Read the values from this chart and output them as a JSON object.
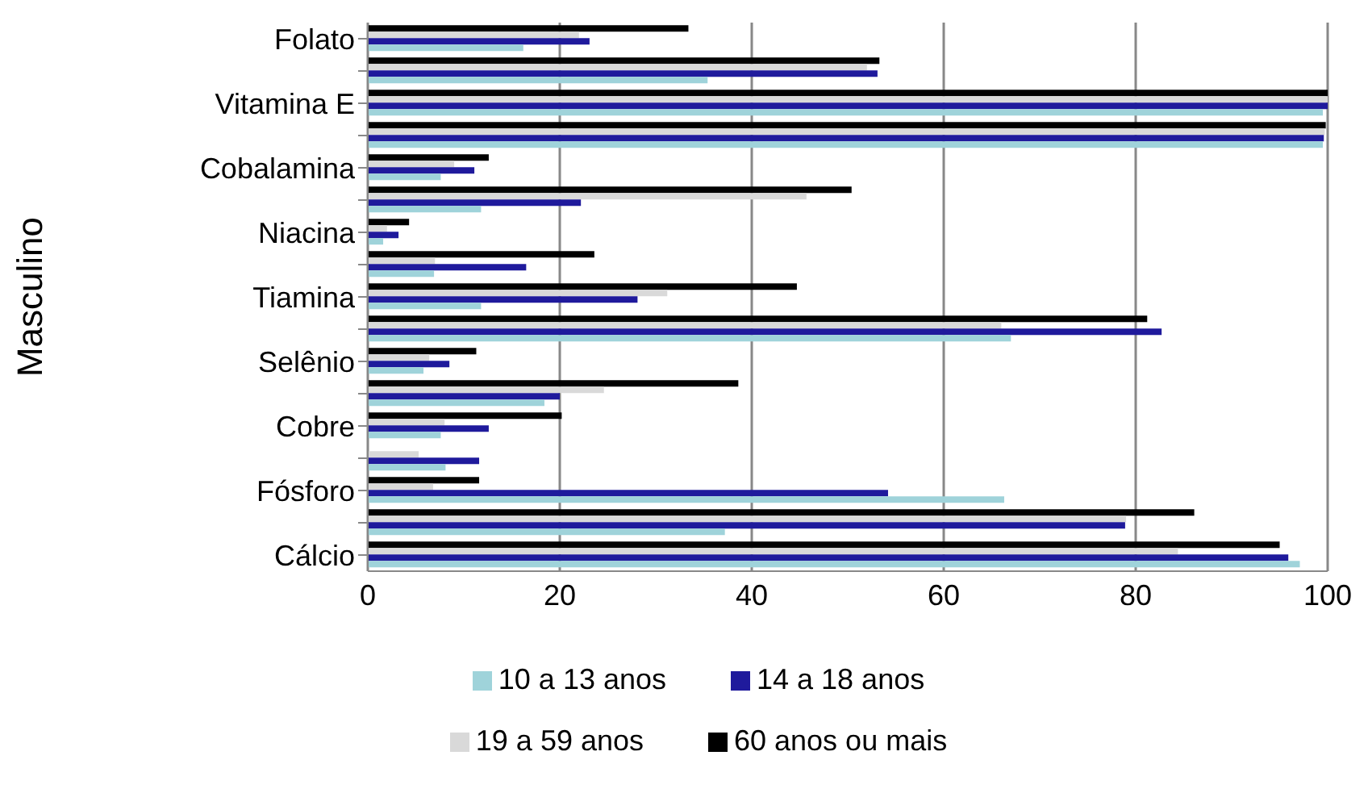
{
  "chart_data": {
    "type": "bar",
    "orientation": "horizontal",
    "ylabel": "Masculino",
    "categories": [
      "Folato",
      null,
      "Vitamina E",
      null,
      "Cobalamina",
      null,
      "Niacina",
      null,
      "Tiamina",
      null,
      "Selênio",
      null,
      "Cobre",
      null,
      "Fósforo",
      null,
      "Cálcio"
    ],
    "series": [
      {
        "name": "60 anos ou mais",
        "color": "#000000",
        "values": [
          33.4,
          53.3,
          100,
          99.8,
          12.6,
          50.4,
          4.3,
          23.6,
          44.7,
          81.2,
          11.3,
          38.6,
          20.2,
          0,
          11.6,
          86.1,
          95.0
        ]
      },
      {
        "name": "19 a 59 anos",
        "color": "#d9d9d9",
        "values": [
          22,
          52,
          100,
          99.7,
          9,
          45.7,
          2,
          7,
          31.2,
          66,
          6.4,
          24.6,
          8,
          5.3,
          6.8,
          79,
          84.4
        ]
      },
      {
        "name": "14 a 18 anos",
        "color": "#1f1a9c",
        "values": [
          23.1,
          53.1,
          100,
          99.6,
          11.1,
          22.2,
          3.2,
          16.5,
          28.1,
          82.7,
          8.5,
          20.0,
          12.6,
          11.6,
          54.2,
          78.9,
          95.9
        ]
      },
      {
        "name": "10 a 13 anos",
        "color": "#9fd3da",
        "values": [
          16.2,
          35.4,
          99.5,
          99.5,
          7.6,
          11.8,
          1.6,
          6.9,
          11.8,
          67.0,
          5.8,
          18.4,
          7.6,
          8.1,
          66.3,
          37.2,
          97.1
        ]
      }
    ],
    "xlim": [
      0,
      100
    ],
    "xticks": [
      0,
      20,
      40,
      60,
      80,
      100
    ],
    "grid": "x",
    "legend": "bottom"
  }
}
